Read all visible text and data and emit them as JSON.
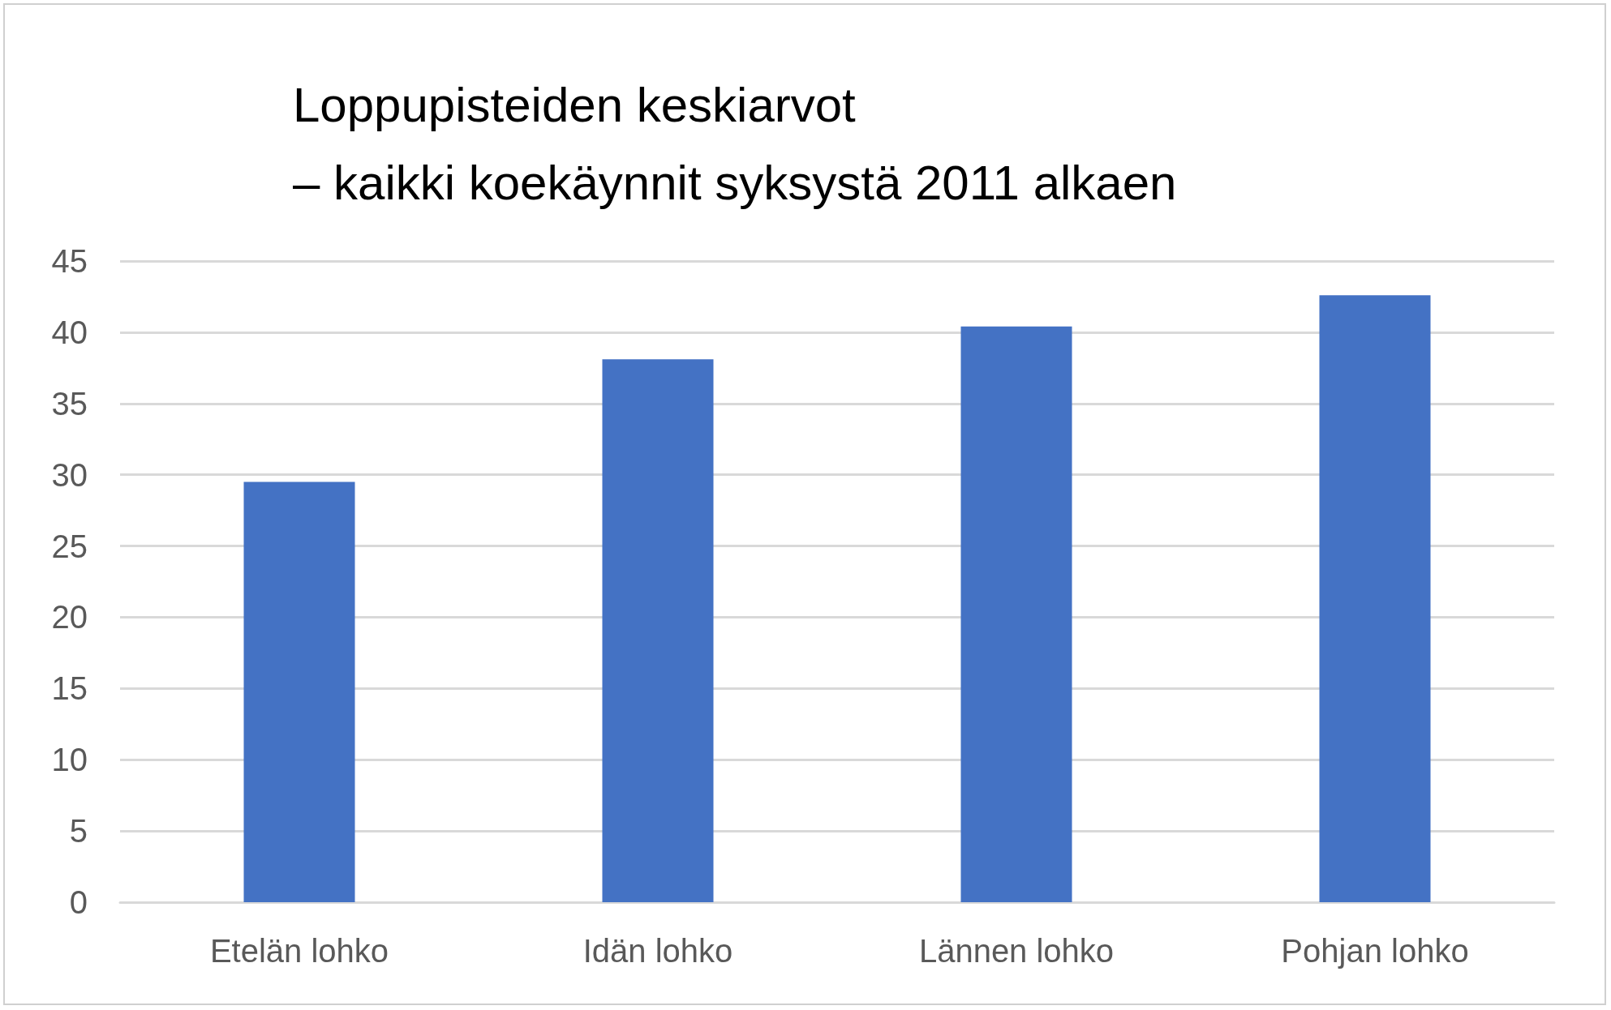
{
  "chart_data": {
    "type": "bar",
    "title": "Loppupisteiden keskiarvot\n– kaikki koekäynnit syksystä 2011 alkaen",
    "categories": [
      "Etelän lohko",
      "Idän lohko",
      "Lännen lohko",
      "Pohjan lohko"
    ],
    "values": [
      29.5,
      38.1,
      40.4,
      42.6
    ],
    "color": "#4472c4",
    "ylim": [
      0,
      45
    ],
    "yticks": [
      0,
      5,
      10,
      15,
      20,
      25,
      30,
      35,
      40,
      45
    ],
    "grid": "y"
  }
}
